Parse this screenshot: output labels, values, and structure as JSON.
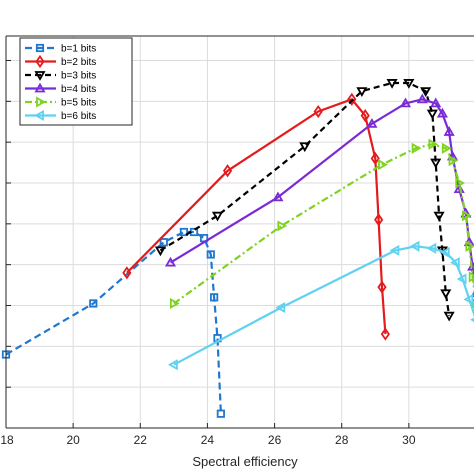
{
  "chart_data": {
    "type": "line",
    "title": "",
    "xlabel": "Spectral efficiency",
    "ylabel": "",
    "xlim": [
      18,
      32
    ],
    "ylim": [
      0,
      9.6
    ],
    "xticks": [
      18,
      20,
      22,
      24,
      26,
      28,
      30
    ],
    "yticks": [
      1,
      2,
      3,
      4,
      5,
      6,
      7,
      8,
      9
    ],
    "grid": true,
    "legend_position": "top-left",
    "series": [
      {
        "name": "b=1 bits",
        "color": "#1f77d0",
        "dash": "7,4",
        "marker": "square",
        "x": [
          18.0,
          20.6,
          22.7,
          23.3,
          23.6,
          23.9,
          24.1,
          24.2,
          24.3,
          24.4
        ],
        "y": [
          1.8,
          3.05,
          4.55,
          4.8,
          4.8,
          4.65,
          4.25,
          3.2,
          2.2,
          0.35
        ]
      },
      {
        "name": "b=2 bits",
        "color": "#e41a1c",
        "dash": "",
        "marker": "diamond",
        "x": [
          21.6,
          24.6,
          27.3,
          28.3,
          28.7,
          29.0,
          29.1,
          29.2,
          29.3
        ],
        "y": [
          3.8,
          6.3,
          7.75,
          8.05,
          7.65,
          6.6,
          5.1,
          3.45,
          2.3
        ]
      },
      {
        "name": "b=3 bits",
        "color": "#000000",
        "dash": "6,4",
        "marker": "triangle-down",
        "x": [
          22.6,
          24.3,
          26.9,
          28.6,
          29.5,
          30.0,
          30.5,
          30.7,
          30.8,
          30.9,
          31.0,
          31.1,
          31.2
        ],
        "y": [
          4.35,
          5.2,
          6.9,
          8.25,
          8.45,
          8.45,
          8.25,
          7.7,
          6.5,
          5.2,
          4.35,
          3.3,
          2.75
        ]
      },
      {
        "name": "b=4 bits",
        "color": "#7a2bd6",
        "dash": "",
        "marker": "triangle-up",
        "x": [
          22.9,
          26.1,
          28.9,
          29.9,
          30.4,
          30.8,
          31.0,
          31.2,
          31.3,
          31.5,
          31.7,
          31.8,
          31.9,
          32.0
        ],
        "y": [
          4.05,
          5.65,
          7.45,
          7.95,
          8.05,
          7.95,
          7.7,
          7.25,
          6.65,
          5.85,
          5.25,
          4.55,
          3.95,
          3.3
        ]
      },
      {
        "name": "b=5 bits",
        "color": "#7ed321",
        "dash": "7,3,2,3",
        "marker": "triangle-right",
        "x": [
          23.0,
          26.2,
          29.2,
          30.2,
          30.7,
          31.1,
          31.3,
          31.5,
          31.7,
          31.8,
          31.9,
          32.0
        ],
        "y": [
          3.05,
          4.95,
          6.45,
          6.85,
          6.95,
          6.85,
          6.55,
          6.0,
          5.2,
          4.45,
          3.7,
          3.05
        ]
      },
      {
        "name": "b=6 bits",
        "color": "#5ed2f0",
        "dash": "",
        "marker": "triangle-left",
        "x": [
          23.0,
          26.2,
          29.6,
          30.2,
          30.7,
          31.1,
          31.4,
          31.6,
          31.8,
          32.0
        ],
        "y": [
          1.55,
          2.95,
          4.35,
          4.45,
          4.4,
          4.3,
          4.05,
          3.65,
          3.15,
          2.65
        ]
      }
    ]
  }
}
